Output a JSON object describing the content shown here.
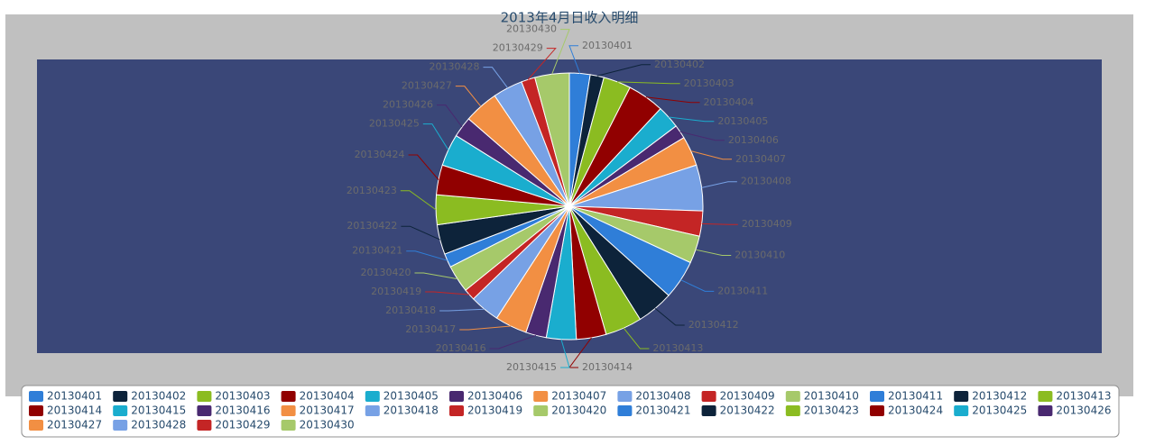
{
  "chart_data": {
    "type": "pie",
    "title": "2013年4月日收入明细",
    "categories": [
      "20130401",
      "20130402",
      "20130403",
      "20130404",
      "20130405",
      "20130406",
      "20130407",
      "20130408",
      "20130409",
      "20130410",
      "20130411",
      "20130412",
      "20130413",
      "20130414",
      "20130415",
      "20130416",
      "20130417",
      "20130418",
      "20130419",
      "20130420",
      "20130421",
      "20130422",
      "20130423",
      "20130424",
      "20130425",
      "20130426",
      "20130427",
      "20130428",
      "20130429",
      "20130430"
    ],
    "values": [
      9,
      6,
      12,
      16,
      10,
      6,
      13,
      20,
      11,
      12,
      17,
      16,
      16,
      13,
      13,
      9,
      14,
      13,
      5,
      12,
      6,
      13,
      13,
      13,
      14,
      9,
      15,
      13,
      6,
      15
    ],
    "colors": [
      "#2f7ed8",
      "#0d233a",
      "#8bbc21",
      "#910000",
      "#1aadce",
      "#492970",
      "#f28f43",
      "#77a1e5",
      "#c42525",
      "#a6c96a"
    ],
    "legend": "bottom"
  }
}
